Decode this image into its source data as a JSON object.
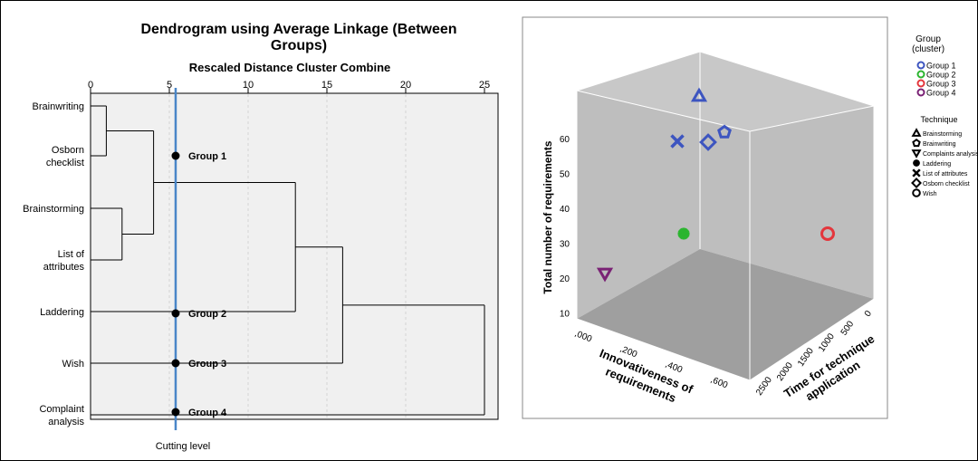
{
  "dendrogram": {
    "title_line1": "Dendrogram using Average Linkage (Between",
    "title_line2": "Groups)",
    "subtitle": "Rescaled Distance Cluster Combine",
    "axis_ticks": [
      "0",
      "5",
      "10",
      "15",
      "20",
      "25"
    ],
    "cutting_level_label": "Cutting level",
    "cut_value": 5.4,
    "leaves": [
      {
        "label_lines": [
          "Brainwriting"
        ]
      },
      {
        "label_lines": [
          "Osborn",
          "checklist"
        ]
      },
      {
        "label_lines": [
          "Brainstorming"
        ]
      },
      {
        "label_lines": [
          "List of",
          "attributes"
        ]
      },
      {
        "label_lines": [
          "Laddering"
        ]
      },
      {
        "label_lines": [
          "Wish"
        ]
      },
      {
        "label_lines": [
          "Complaint",
          "analysis"
        ]
      }
    ],
    "group_labels": [
      "Group 1",
      "Group 2",
      "Group 3",
      "Group 4"
    ]
  },
  "chart_data": [
    {
      "type": "dendrogram",
      "title": "Dendrogram using Average Linkage (Between Groups)",
      "xlabel": "Rescaled Distance Cluster Combine",
      "xlim": [
        0,
        25
      ],
      "leaves": [
        "Brainwriting",
        "Osborn checklist",
        "Brainstorming",
        "List of attributes",
        "Laddering",
        "Wish",
        "Complaint analysis"
      ],
      "merges": [
        {
          "members": [
            "Brainwriting",
            "Osborn checklist"
          ],
          "distance": 1
        },
        {
          "members": [
            "Brainstorming",
            "List of attributes"
          ],
          "distance": 2
        },
        {
          "members": [
            "Brainwriting",
            "Osborn checklist",
            "Brainstorming",
            "List of attributes"
          ],
          "distance": 4
        },
        {
          "members": [
            "Brainwriting",
            "Osborn checklist",
            "Brainstorming",
            "List of attributes",
            "Laddering"
          ],
          "distance": 13
        },
        {
          "members": [
            "Brainwriting",
            "Osborn checklist",
            "Brainstorming",
            "List of attributes",
            "Laddering",
            "Wish"
          ],
          "distance": 16
        },
        {
          "members": [
            "Brainwriting",
            "Osborn checklist",
            "Brainstorming",
            "List of attributes",
            "Laddering",
            "Wish",
            "Complaint analysis"
          ],
          "distance": 25
        }
      ],
      "cutting_level": 5.4,
      "groups": [
        {
          "name": "Group 1",
          "members": [
            "Brainwriting",
            "Osborn checklist",
            "Brainstorming",
            "List of attributes"
          ]
        },
        {
          "name": "Group 2",
          "members": [
            "Laddering"
          ]
        },
        {
          "name": "Group 3",
          "members": [
            "Wish"
          ]
        },
        {
          "name": "Group 4",
          "members": [
            "Complaint analysis"
          ]
        }
      ],
      "grid": true
    },
    {
      "type": "scatter",
      "subtype": "3d",
      "xlabel": "Innovativeness of requirements",
      "ylabel": "Time for technique application",
      "zlabel": "Total number of requirements",
      "x_ticks": [
        ",000",
        ",200",
        ",400",
        ",600"
      ],
      "y_ticks": [
        "0",
        "500",
        "1000",
        "1500",
        "2000",
        "2500"
      ],
      "z_ticks": [
        "10",
        "20",
        "30",
        "40",
        "50",
        "60"
      ],
      "legend_group_title": "Group (cluster)",
      "legend_technique_title": "Technique",
      "legend_position": "right",
      "groups": [
        {
          "name": "Group 1",
          "color": "#3d55c0"
        },
        {
          "name": "Group 2",
          "color": "#2bb52f"
        },
        {
          "name": "Group 3",
          "color": "#e4363c"
        },
        {
          "name": "Group 4",
          "color": "#7a2275"
        }
      ],
      "techniques": [
        {
          "name": "Brainstorming",
          "marker": "triangle-up"
        },
        {
          "name": "Brainwriting",
          "marker": "pentagon"
        },
        {
          "name": "Complaints analysis",
          "marker": "triangle-down"
        },
        {
          "name": "Laddering",
          "marker": "star"
        },
        {
          "name": "List of attributes",
          "marker": "x"
        },
        {
          "name": "Osborn checklist",
          "marker": "diamond"
        },
        {
          "name": "Wish",
          "marker": "circle"
        }
      ],
      "points": [
        {
          "technique": "Brainstorming",
          "group": "Group 1",
          "x": 0.45,
          "y": 750,
          "z": 64
        },
        {
          "technique": "Brainwriting",
          "group": "Group 1",
          "x": 0.51,
          "y": 680,
          "z": 55
        },
        {
          "technique": "List of attributes",
          "group": "Group 1",
          "x": 0.3,
          "y": 1200,
          "z": 58
        },
        {
          "technique": "Osborn checklist",
          "group": "Group 1",
          "x": 0.43,
          "y": 930,
          "z": 55
        },
        {
          "technique": "Laddering",
          "group": "Group 2",
          "x": 0.3,
          "y": 1400,
          "z": 31
        },
        {
          "technique": "Wish",
          "group": "Group 3",
          "x": 0.7,
          "y": 200,
          "z": 36
        },
        {
          "technique": "Complaints analysis",
          "group": "Group 4",
          "x": 0.05,
          "y": 1800,
          "z": 21
        }
      ]
    }
  ],
  "scatter": {
    "zlabel": "Total number of requirements",
    "xlabel_line1": "Innovativeness of",
    "xlabel_line2": "requirements",
    "ylabel_line1": "Time for technique",
    "ylabel_line2": "application",
    "x_ticks": [
      ",000",
      ",200",
      ",400",
      ",600"
    ],
    "y_ticks": [
      "2500",
      "2000",
      "1500",
      "1000",
      "500",
      "0"
    ],
    "z_ticks": [
      "60",
      "50",
      "40",
      "30",
      "20",
      "10"
    ],
    "legend_group_title_line1": "Group",
    "legend_group_title_line2": "(cluster)",
    "legend_groups": [
      "Group 1",
      "Group 2",
      "Group 3",
      "Group 4"
    ],
    "legend_technique_title": "Technique",
    "legend_techniques": [
      "Brainstorming",
      "Brainwriting",
      "Complaints analysis",
      "Laddering",
      "List of attributes",
      "Osborn checklist",
      "Wish"
    ]
  }
}
